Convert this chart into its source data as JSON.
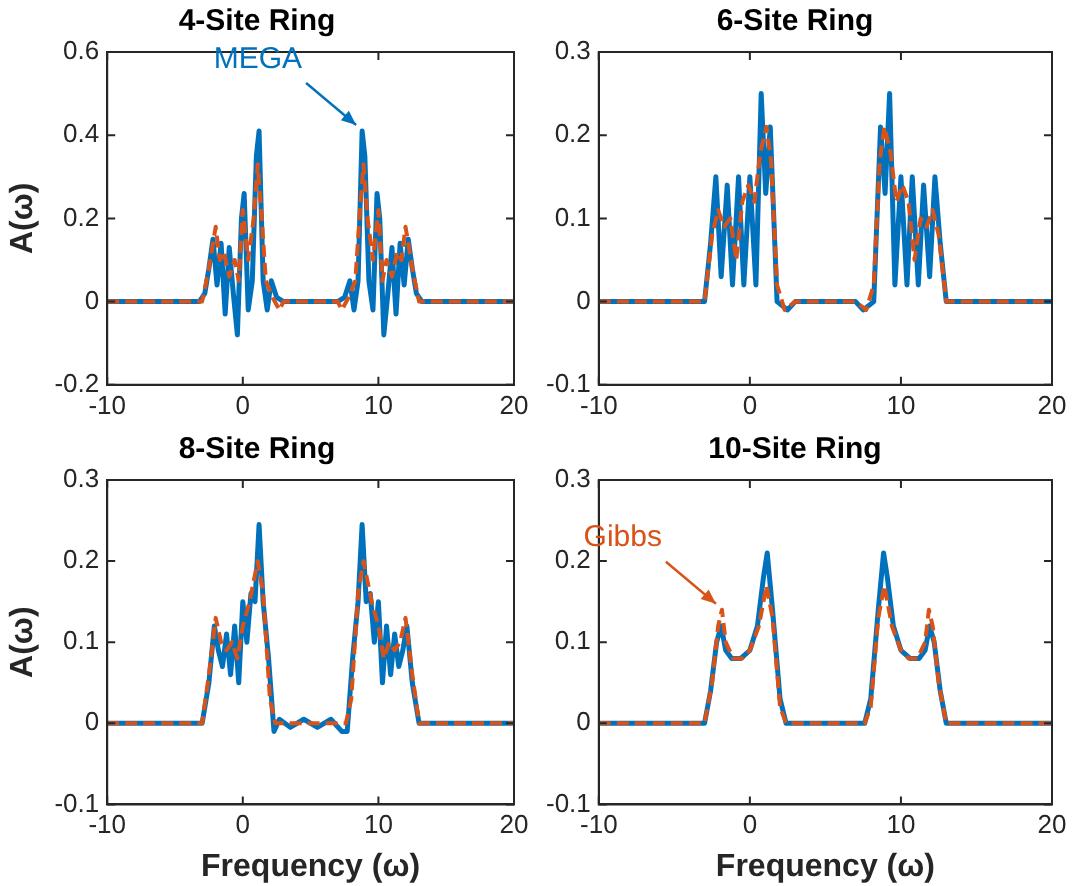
{
  "chart_data": [
    {
      "type": "line",
      "title": "4-Site Ring",
      "ylabel": "A(ω)",
      "xlim": [
        -10,
        20
      ],
      "xticks": [
        -10,
        0,
        10,
        20
      ],
      "ylim": [
        -0.2,
        0.6
      ],
      "yticks": [
        -0.2,
        0,
        0.2,
        0.4,
        0.6
      ],
      "annotations": [
        {
          "text": "MEGA",
          "x": 8.8,
          "y": 0.41
        }
      ],
      "series": [
        {
          "color": "#0072bd",
          "line_style": "solid",
          "x": [
            -10,
            -3.2,
            -2.8,
            -2.5,
            -2.2,
            -1.9,
            -1.6,
            -1.3,
            -1.0,
            -0.7,
            -0.4,
            -0.1,
            0.1,
            0.4,
            0.7,
            1.0,
            1.2,
            1.5,
            1.8,
            2.1,
            2.5,
            3,
            7,
            7.5,
            7.9,
            8.2,
            8.5,
            8.8,
            9.0,
            9.3,
            9.6,
            9.9,
            10.1,
            10.4,
            10.7,
            11.0,
            11.3,
            11.6,
            11.9,
            12.2,
            12.5,
            12.8,
            13.2,
            20
          ],
          "values": [
            0,
            0,
            0.02,
            0.08,
            0.15,
            0.04,
            0.14,
            -0.03,
            0.13,
            0.02,
            -0.08,
            0.2,
            0.26,
            -0.02,
            0.05,
            0.35,
            0.41,
            0.05,
            -0.02,
            0.05,
            0.01,
            0,
            0,
            0.01,
            0.05,
            -0.02,
            0.05,
            0.41,
            0.35,
            0.05,
            -0.02,
            0.26,
            0.2,
            -0.08,
            0.02,
            0.13,
            -0.03,
            0.14,
            0.04,
            0.15,
            0.08,
            0.02,
            0,
            0
          ]
        },
        {
          "color": "#d95319",
          "line_style": "dashed",
          "x": [
            -10,
            -3,
            -2.5,
            -2,
            -1.7,
            -1.4,
            -1,
            -0.6,
            -0.3,
            0,
            0.4,
            0.8,
            1.1,
            1.4,
            1.7,
            2.2,
            2.7,
            3,
            7,
            7.3,
            7.8,
            8.3,
            8.6,
            8.9,
            9.2,
            9.6,
            10,
            10.3,
            10.6,
            11,
            11.4,
            11.7,
            12,
            12.5,
            13,
            20
          ],
          "values": [
            0,
            0,
            0.08,
            0.18,
            0.1,
            0.12,
            0.06,
            0.1,
            0.05,
            0.22,
            0.1,
            0.2,
            0.33,
            0.2,
            0.05,
            0.01,
            -0.02,
            0,
            0,
            -0.02,
            0.01,
            0.05,
            0.2,
            0.33,
            0.2,
            0.1,
            0.22,
            0.05,
            0.1,
            0.06,
            0.12,
            0.1,
            0.18,
            0.08,
            0,
            0
          ]
        }
      ]
    },
    {
      "type": "line",
      "title": "6-Site Ring",
      "xlim": [
        -10,
        20
      ],
      "xticks": [
        -10,
        0,
        10,
        20
      ],
      "ylim": [
        -0.1,
        0.3
      ],
      "yticks": [
        -0.1,
        0,
        0.1,
        0.2,
        0.3
      ],
      "series": [
        {
          "color": "#0072bd",
          "line_style": "solid",
          "x": [
            -10,
            -3,
            -2.6,
            -2.25,
            -1.9,
            -1.5,
            -1.15,
            -0.75,
            -0.4,
            0,
            0.4,
            0.75,
            1.05,
            1.35,
            1.8,
            2.5,
            3,
            7,
            7.5,
            8.2,
            8.65,
            8.95,
            9.25,
            9.6,
            10,
            10.4,
            10.75,
            11.15,
            11.5,
            11.9,
            12.25,
            12.6,
            13,
            20
          ],
          "values": [
            0,
            0,
            0.07,
            0.15,
            0.03,
            0.14,
            0.02,
            0.15,
            0.02,
            0.15,
            0.02,
            0.25,
            0.13,
            0.21,
            0,
            -0.01,
            0,
            0,
            -0.01,
            0,
            0.21,
            0.13,
            0.25,
            0.02,
            0.15,
            0.02,
            0.15,
            0.02,
            0.14,
            0.03,
            0.15,
            0.07,
            0,
            0
          ]
        },
        {
          "color": "#d95319",
          "line_style": "dashed",
          "x": [
            -10,
            -3,
            -2.5,
            -2.1,
            -1.7,
            -1.3,
            -0.9,
            -0.5,
            -0.1,
            0.3,
            0.7,
            1.1,
            1.4,
            1.8,
            2.3,
            3,
            7,
            7.7,
            8.2,
            8.6,
            8.9,
            9.3,
            9.7,
            10.1,
            10.5,
            10.9,
            11.3,
            11.7,
            12.1,
            12.5,
            13,
            20
          ],
          "values": [
            0,
            0,
            0.08,
            0.11,
            0.09,
            0.1,
            0.05,
            0.12,
            0.14,
            0.12,
            0.18,
            0.21,
            0.17,
            0.02,
            -0.01,
            0,
            0,
            -0.01,
            0.02,
            0.17,
            0.21,
            0.18,
            0.12,
            0.14,
            0.12,
            0.05,
            0.1,
            0.09,
            0.11,
            0.08,
            0,
            0
          ]
        }
      ]
    },
    {
      "type": "line",
      "title": "8-Site Ring",
      "xlabel": "Frequency (ω)",
      "ylabel": "A(ω)",
      "xlim": [
        -10,
        20
      ],
      "xticks": [
        -10,
        0,
        10,
        20
      ],
      "ylim": [
        -0.1,
        0.3
      ],
      "yticks": [
        -0.1,
        0,
        0.1,
        0.2,
        0.3
      ],
      "series": [
        {
          "color": "#0072bd",
          "line_style": "solid",
          "x": [
            -10,
            -3,
            -2.5,
            -2.1,
            -1.8,
            -1.5,
            -1.2,
            -0.9,
            -0.6,
            -0.3,
            0,
            0.3,
            0.6,
            0.9,
            1.2,
            1.5,
            1.9,
            2.3,
            2.7,
            3.5,
            4.5,
            5.5,
            6.5,
            7.3,
            7.7,
            8.1,
            8.5,
            8.8,
            9.1,
            9.4,
            9.7,
            10,
            10.3,
            10.6,
            10.9,
            11.2,
            11.5,
            11.8,
            12.1,
            12.5,
            13,
            20
          ],
          "values": [
            0,
            0,
            0.05,
            0.12,
            0.09,
            0.07,
            0.11,
            0.06,
            0.12,
            0.05,
            0.15,
            0.1,
            0.16,
            0.15,
            0.245,
            0.15,
            0.08,
            -0.01,
            0.005,
            -0.005,
            0.005,
            -0.005,
            0.005,
            -0.01,
            -0.01,
            0.08,
            0.15,
            0.245,
            0.15,
            0.16,
            0.1,
            0.15,
            0.05,
            0.12,
            0.06,
            0.11,
            0.07,
            0.09,
            0.12,
            0.05,
            0,
            0
          ]
        },
        {
          "color": "#d95319",
          "line_style": "dashed",
          "x": [
            -10,
            -3,
            -2.5,
            -2,
            -1.6,
            -1.2,
            -0.8,
            -0.4,
            0,
            0.5,
            1.1,
            1.5,
            2,
            2.4,
            3,
            7,
            7.6,
            8,
            8.5,
            8.9,
            9.5,
            10,
            10.4,
            10.8,
            11.2,
            11.6,
            12,
            12.5,
            13,
            20
          ],
          "values": [
            0,
            0,
            0.06,
            0.13,
            0.1,
            0.09,
            0.1,
            0.08,
            0.12,
            0.15,
            0.2,
            0.16,
            0.03,
            0,
            0,
            0,
            0,
            0.03,
            0.16,
            0.2,
            0.15,
            0.12,
            0.08,
            0.1,
            0.09,
            0.1,
            0.13,
            0.06,
            0,
            0
          ]
        }
      ]
    },
    {
      "type": "line",
      "title": "10-Site Ring",
      "xlabel": "Frequency (ω)",
      "xlim": [
        -10,
        20
      ],
      "xticks": [
        -10,
        0,
        10,
        20
      ],
      "ylim": [
        -0.1,
        0.3
      ],
      "yticks": [
        -0.1,
        0,
        0.1,
        0.2,
        0.3
      ],
      "annotations": [
        {
          "text": "Gibbs",
          "x": -1.85,
          "y": 0.14
        }
      ],
      "series": [
        {
          "color": "#0072bd",
          "line_style": "solid",
          "x": [
            -10,
            -3,
            -2.6,
            -2.2,
            -1.9,
            -1.6,
            -1.2,
            -0.6,
            0,
            0.5,
            0.9,
            1.15,
            1.5,
            2,
            2.4,
            3,
            7,
            7.6,
            8,
            8.5,
            8.85,
            9.1,
            9.5,
            10,
            10.6,
            11.2,
            11.6,
            11.9,
            12.2,
            12.6,
            13,
            20
          ],
          "values": [
            0,
            0,
            0.04,
            0.1,
            0.12,
            0.09,
            0.08,
            0.08,
            0.09,
            0.12,
            0.18,
            0.21,
            0.14,
            0.03,
            0,
            0,
            0,
            0,
            0.03,
            0.14,
            0.21,
            0.18,
            0.12,
            0.09,
            0.08,
            0.08,
            0.09,
            0.12,
            0.1,
            0.04,
            0,
            0
          ]
        },
        {
          "color": "#d95319",
          "line_style": "dashed",
          "x": [
            -10,
            -3,
            -2.5,
            -2.1,
            -1.85,
            -1.6,
            -1.1,
            -0.5,
            0,
            0.6,
            1.1,
            1.5,
            2,
            2.4,
            3,
            7,
            7.6,
            8,
            8.5,
            8.9,
            9.4,
            10,
            10.5,
            11.1,
            11.6,
            11.85,
            12.1,
            12.5,
            13,
            20
          ],
          "values": [
            0,
            0,
            0.05,
            0.12,
            0.14,
            0.1,
            0.08,
            0.08,
            0.09,
            0.12,
            0.17,
            0.13,
            0.02,
            0,
            0,
            0,
            0,
            0.02,
            0.13,
            0.17,
            0.12,
            0.09,
            0.08,
            0.08,
            0.1,
            0.14,
            0.12,
            0.05,
            0,
            0
          ]
        }
      ]
    }
  ]
}
